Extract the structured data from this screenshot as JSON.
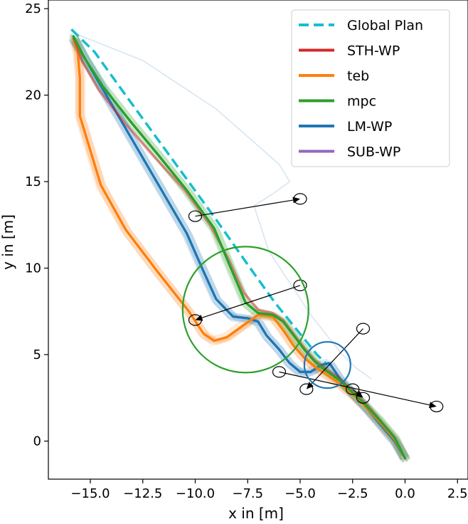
{
  "chart_data": {
    "type": "line",
    "title": "",
    "xlabel": "x in [m]",
    "ylabel": "y in [m]",
    "xlim": [
      -17,
      3
    ],
    "ylim": [
      -2.2,
      25.5
    ],
    "xticks": [
      -15.0,
      -12.5,
      -10.0,
      -7.5,
      -5.0,
      -2.5,
      0.0,
      2.5
    ],
    "xtick_labels": [
      "−15.0",
      "−12.5",
      "−10.0",
      "−7.5",
      "−5.0",
      "−2.5",
      "0.0",
      "2.5"
    ],
    "yticks": [
      0,
      5,
      10,
      15,
      20,
      25
    ],
    "ytick_labels": [
      "0",
      "5",
      "10",
      "15",
      "20",
      "25"
    ],
    "legend_position": "top-right",
    "series": [
      {
        "name": "Global Plan",
        "color": "#17becf",
        "style": "dashed",
        "x": [
          -15.9,
          -14.8,
          -13.5,
          -12.0,
          -10.5,
          -9.0,
          -7.5,
          -6.2,
          -5.0,
          -4.2,
          -3.7
        ],
        "y": [
          23.8,
          22.5,
          20.3,
          17.8,
          15.3,
          12.8,
          10.2,
          8.0,
          6.2,
          5.0,
          4.4
        ]
      },
      {
        "name": "STH-WP",
        "color": "#d62728",
        "style": "solid",
        "x": [
          -15.8,
          -15.4,
          -14.6,
          -13.3,
          -12.0,
          -10.5,
          -9.3,
          -8.4,
          -7.7,
          -7.0,
          -6.3,
          -5.8,
          -5.3,
          -4.8,
          -4.3,
          -3.8,
          -3.1,
          -2.5,
          -1.9,
          -1.2,
          -0.5,
          0.0
        ],
        "y": [
          23.3,
          22.0,
          20.3,
          18.3,
          16.5,
          14.5,
          12.5,
          10.5,
          8.6,
          7.6,
          7.4,
          7.0,
          6.2,
          5.4,
          4.7,
          4.2,
          3.6,
          2.9,
          2.2,
          1.2,
          0.2,
          -1.0
        ]
      },
      {
        "name": "teb",
        "color": "#ff7f0e",
        "style": "solid",
        "x": [
          -15.8,
          -15.6,
          -15.5,
          -15.5,
          -14.5,
          -13.3,
          -11.8,
          -10.3,
          -9.6,
          -9.1,
          -8.5,
          -7.7,
          -7.0,
          -6.3,
          -5.8,
          -5.3,
          -4.8,
          -4.3,
          -3.8,
          -3.1,
          -2.5,
          -1.9,
          -1.2,
          -0.5,
          0.0
        ],
        "y": [
          23.3,
          22.5,
          21.0,
          18.8,
          14.8,
          12.2,
          9.8,
          7.5,
          6.2,
          5.8,
          6.0,
          6.7,
          7.3,
          7.2,
          6.4,
          5.5,
          4.8,
          4.3,
          3.9,
          3.3,
          2.7,
          2.0,
          1.1,
          0.1,
          -1.0
        ]
      },
      {
        "name": "mpc",
        "color": "#2ca02c",
        "style": "solid",
        "x": [
          -15.8,
          -15.3,
          -14.4,
          -13.1,
          -11.8,
          -10.4,
          -9.1,
          -8.3,
          -7.6,
          -7.0,
          -6.3,
          -5.8,
          -5.3,
          -4.8,
          -4.3,
          -3.8,
          -3.1,
          -2.5,
          -1.9,
          -1.2,
          -0.5,
          0.0
        ],
        "y": [
          23.4,
          22.2,
          20.5,
          18.5,
          16.6,
          14.5,
          12.3,
          10.0,
          8.0,
          7.4,
          7.3,
          6.9,
          6.1,
          5.3,
          4.6,
          4.1,
          3.5,
          2.8,
          2.1,
          1.2,
          0.2,
          -1.0
        ]
      },
      {
        "name": "LM-WP",
        "color": "#1f77b4",
        "style": "solid",
        "x": [
          -15.8,
          -15.2,
          -14.0,
          -12.8,
          -11.6,
          -10.4,
          -9.6,
          -9.0,
          -8.2,
          -7.5,
          -7.0,
          -6.6,
          -6.0,
          -5.5,
          -5.0,
          -4.5,
          -4.0,
          -3.6,
          -3.1,
          -2.5,
          -1.9,
          -1.2,
          -0.5,
          0.0
        ],
        "y": [
          23.3,
          22.0,
          19.5,
          17.0,
          14.5,
          12.0,
          9.8,
          8.2,
          7.2,
          7.1,
          6.9,
          6.1,
          5.3,
          4.5,
          4.0,
          4.0,
          4.4,
          4.5,
          3.6,
          2.8,
          2.0,
          1.0,
          0.0,
          -1.0
        ]
      },
      {
        "name": "SUB-WP",
        "color": "#9467bd",
        "style": "solid",
        "x": [],
        "y": []
      }
    ],
    "obstacles": [
      {
        "start": [
          -10.0,
          13.0
        ],
        "end": [
          -5.0,
          14.0
        ]
      },
      {
        "start": [
          -5.0,
          9.0
        ],
        "end": [
          -10.0,
          7.0
        ]
      },
      {
        "start": [
          -2.0,
          6.5
        ],
        "end": [
          -4.7,
          3.0
        ]
      },
      {
        "start": [
          -6.0,
          4.0
        ],
        "end": [
          1.5,
          2.0
        ]
      },
      {
        "start": [
          -2.5,
          3.0
        ],
        "end": [
          -2.0,
          2.5
        ]
      }
    ],
    "annotations": [
      {
        "type": "circle",
        "color": "#2ca02c",
        "cx": -7.6,
        "cy": 7.6,
        "r": 3.0
      },
      {
        "type": "circle",
        "color": "#1f77b4",
        "cx": -3.7,
        "cy": 4.4,
        "r": 1.1
      }
    ]
  }
}
